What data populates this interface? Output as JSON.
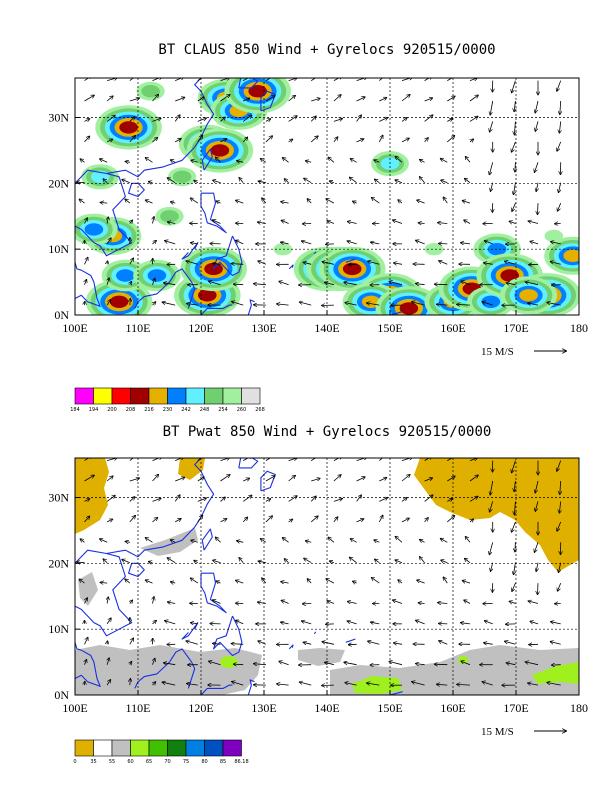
{
  "chart_data": [
    {
      "type": "heatmap",
      "title": "BT CLAUS 850 Wind + Gyrelocs 920515/0000",
      "xlabel": "",
      "ylabel": "",
      "xlim": [
        100,
        180
      ],
      "ylim": [
        0,
        36
      ],
      "x_ticks": [
        100,
        110,
        120,
        130,
        140,
        150,
        160,
        170,
        180
      ],
      "x_tick_labels": [
        "100E",
        "110E",
        "120E",
        "130E",
        "140E",
        "150E",
        "160E",
        "170E",
        "180"
      ],
      "y_ticks": [
        0,
        10,
        20,
        30
      ],
      "y_tick_labels": [
        "0N",
        "10N",
        "20N",
        "30N"
      ],
      "grid": true,
      "reference_vector": "15 M/S",
      "colorbar": {
        "levels": [
          "184",
          "194",
          "200",
          "208",
          "216",
          "230",
          "242",
          "248",
          "254",
          "260",
          "268"
        ],
        "colors": [
          "#ff00ff",
          "#ffff00",
          "#ff0000",
          "#a00000",
          "#e6b000",
          "#0080ff",
          "#60f0ff",
          "#70d070",
          "#a0f0a0",
          "#e0e0e0"
        ]
      },
      "cloud_cells": [
        {
          "lon": 108.5,
          "lat": 28.5,
          "level": 3
        },
        {
          "lon": 107,
          "lat": 2,
          "level": 3
        },
        {
          "lon": 106,
          "lat": 12,
          "level": 4
        },
        {
          "lon": 103,
          "lat": 13,
          "level": 5
        },
        {
          "lon": 108,
          "lat": 6,
          "level": 5
        },
        {
          "lon": 113,
          "lat": 6,
          "level": 5
        },
        {
          "lon": 121,
          "lat": 3,
          "level": 3
        },
        {
          "lon": 122,
          "lat": 7,
          "level": 3
        },
        {
          "lon": 124,
          "lat": 33,
          "level": 4
        },
        {
          "lon": 126,
          "lat": 31,
          "level": 4
        },
        {
          "lon": 121,
          "lat": 26,
          "level": 4
        },
        {
          "lon": 123,
          "lat": 25,
          "level": 3
        },
        {
          "lon": 129,
          "lat": 34,
          "level": 3
        },
        {
          "lon": 140,
          "lat": 7,
          "level": 3
        },
        {
          "lon": 142,
          "lat": 7,
          "level": 3
        },
        {
          "lon": 144,
          "lat": 7,
          "level": 3
        },
        {
          "lon": 150,
          "lat": 3,
          "level": 3
        },
        {
          "lon": 147,
          "lat": 2,
          "level": 4
        },
        {
          "lon": 153,
          "lat": 1,
          "level": 3
        },
        {
          "lon": 150,
          "lat": 23,
          "level": 6
        },
        {
          "lon": 160,
          "lat": 2,
          "level": 4
        },
        {
          "lon": 163,
          "lat": 4,
          "level": 3
        },
        {
          "lon": 166,
          "lat": 2,
          "level": 5
        },
        {
          "lon": 167,
          "lat": 10,
          "level": 5
        },
        {
          "lon": 169,
          "lat": 6,
          "level": 3
        },
        {
          "lon": 175,
          "lat": 3,
          "level": 3
        },
        {
          "lon": 172,
          "lat": 3,
          "level": 4
        },
        {
          "lon": 179,
          "lat": 9,
          "level": 4
        },
        {
          "lon": 115,
          "lat": 15,
          "level": 7
        },
        {
          "lon": 117,
          "lat": 21,
          "level": 7
        },
        {
          "lon": 133,
          "lat": 10,
          "level": 8
        },
        {
          "lon": 157,
          "lat": 10,
          "level": 8
        },
        {
          "lon": 176,
          "lat": 12,
          "level": 8
        },
        {
          "lon": 104,
          "lat": 21,
          "level": 6
        },
        {
          "lon": 112,
          "lat": 34,
          "level": 7
        }
      ]
    },
    {
      "type": "heatmap",
      "title": "BT Pwat 850 Wind + Gyrelocs 920515/0000",
      "xlabel": "",
      "ylabel": "",
      "xlim": [
        100,
        180
      ],
      "ylim": [
        0,
        36
      ],
      "x_ticks": [
        100,
        110,
        120,
        130,
        140,
        150,
        160,
        170,
        180
      ],
      "x_tick_labels": [
        "100E",
        "110E",
        "120E",
        "130E",
        "140E",
        "150E",
        "160E",
        "170E",
        "180"
      ],
      "y_ticks": [
        0,
        10,
        20,
        30
      ],
      "y_tick_labels": [
        "0N",
        "10N",
        "20N",
        "30N"
      ],
      "grid": true,
      "reference_vector": "15 M/S",
      "colorbar": {
        "levels": [
          "0",
          "35",
          "55",
          "60",
          "65",
          "70",
          "75",
          "80",
          "85",
          "86.18"
        ],
        "colors": [
          "#e0b000",
          "#ffffff",
          "#c0c0c0",
          "#a0f020",
          "#40c000",
          "#108010",
          "#0080e0",
          "#0050c0",
          "#8000c0"
        ]
      },
      "regions": [
        {
          "name": "dry-north-west",
          "level": 0
        },
        {
          "name": "dry-north-east",
          "level": 0
        },
        {
          "name": "moist-south-band",
          "level": 2
        },
        {
          "name": "moist-south-china",
          "level": 2
        },
        {
          "name": "very-moist-cells",
          "level": 3
        }
      ]
    }
  ]
}
